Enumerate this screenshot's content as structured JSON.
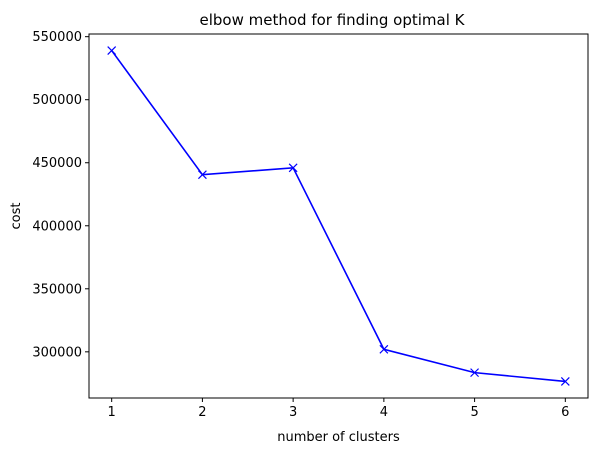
{
  "chart_data": {
    "type": "line",
    "title": "elbow method for finding optimal K",
    "xlabel": "number of clusters",
    "ylabel": "cost",
    "x": [
      1,
      2,
      3,
      4,
      5,
      6
    ],
    "series": [
      {
        "values": [
          539000,
          440500,
          446000,
          302000,
          283500,
          276500
        ],
        "color": "#0000ff",
        "marker": "x"
      }
    ],
    "xticks": [
      "1",
      "2",
      "3",
      "4",
      "5",
      "6"
    ],
    "yticks": [
      "300000",
      "350000",
      "400000",
      "450000",
      "500000",
      "550000"
    ],
    "xlim": [
      0.75,
      6.25
    ],
    "ylim": [
      263375,
      552125
    ],
    "grid": false,
    "legend": "none"
  }
}
